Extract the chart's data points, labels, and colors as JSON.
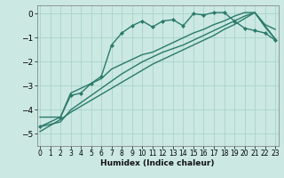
{
  "xlabel": "Humidex (Indice chaleur)",
  "ylabel": "",
  "background_color": "#cbe8e3",
  "grid_color": "#a8d4cc",
  "line_color": "#2a7a6a",
  "x_ticks": [
    0,
    1,
    2,
    3,
    4,
    5,
    6,
    7,
    8,
    9,
    10,
    11,
    12,
    13,
    14,
    15,
    16,
    17,
    18,
    19,
    20,
    21,
    22,
    23
  ],
  "y_ticks": [
    0,
    -1,
    -2,
    -3,
    -4,
    -5
  ],
  "xlim": [
    -0.3,
    23.3
  ],
  "ylim": [
    -5.5,
    0.35
  ],
  "series": [
    {
      "x": [
        0,
        2,
        3,
        4,
        5,
        6,
        7,
        8,
        9,
        10,
        11,
        12,
        13,
        14,
        15,
        16,
        17,
        18,
        19,
        20,
        21,
        22,
        23
      ],
      "y": [
        -4.7,
        -4.3,
        -3.4,
        -3.3,
        -2.9,
        -2.6,
        -1.3,
        -0.8,
        -0.5,
        -0.3,
        -0.55,
        -0.3,
        -0.25,
        -0.5,
        0.0,
        -0.05,
        0.05,
        0.05,
        -0.3,
        -0.6,
        -0.7,
        -0.8,
        -1.1
      ],
      "marker": "D",
      "markersize": 2.0,
      "lw": 1.0
    },
    {
      "x": [
        0,
        2,
        3,
        4,
        5,
        6,
        7,
        8,
        9,
        10,
        11,
        12,
        13,
        14,
        15,
        16,
        17,
        18,
        19,
        20,
        21,
        22,
        23
      ],
      "y": [
        -4.3,
        -4.3,
        -3.3,
        -3.1,
        -2.9,
        -2.7,
        -2.3,
        -2.1,
        -1.9,
        -1.7,
        -1.6,
        -1.4,
        -1.2,
        -1.0,
        -0.8,
        -0.65,
        -0.45,
        -0.3,
        -0.1,
        0.05,
        0.05,
        -0.45,
        -0.65
      ],
      "marker": null,
      "markersize": 0,
      "lw": 1.0
    },
    {
      "x": [
        0,
        2,
        3,
        4,
        5,
        6,
        7,
        8,
        9,
        10,
        11,
        12,
        13,
        14,
        15,
        16,
        17,
        18,
        19,
        20,
        21,
        22,
        23
      ],
      "y": [
        -4.7,
        -4.5,
        -4.0,
        -3.7,
        -3.4,
        -3.1,
        -2.8,
        -2.5,
        -2.25,
        -2.0,
        -1.8,
        -1.6,
        -1.45,
        -1.3,
        -1.1,
        -0.9,
        -0.7,
        -0.5,
        -0.3,
        -0.1,
        0.05,
        -0.55,
        -1.05
      ],
      "marker": null,
      "markersize": 0,
      "lw": 1.0
    },
    {
      "x": [
        0,
        2,
        3,
        4,
        5,
        6,
        7,
        8,
        9,
        10,
        11,
        12,
        13,
        14,
        15,
        16,
        17,
        18,
        19,
        20,
        21,
        22,
        23
      ],
      "y": [
        -4.9,
        -4.4,
        -4.1,
        -3.85,
        -3.6,
        -3.35,
        -3.1,
        -2.85,
        -2.6,
        -2.35,
        -2.1,
        -1.9,
        -1.7,
        -1.5,
        -1.3,
        -1.1,
        -0.9,
        -0.65,
        -0.45,
        -0.2,
        0.05,
        -0.5,
        -1.05
      ],
      "marker": null,
      "markersize": 0,
      "lw": 1.0
    }
  ]
}
